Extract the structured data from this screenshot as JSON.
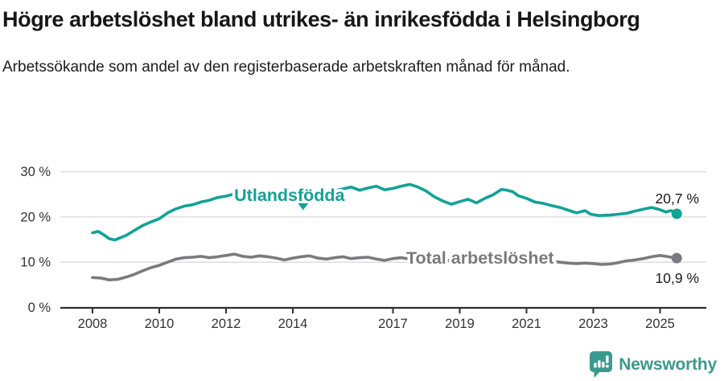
{
  "header": {
    "title": "Högre arbetslöshet bland utrikes- än inrikesfödda i Helsingborg",
    "subtitle": "Arbetssökande som andel av den registerbaserade arbetskraften månad för månad."
  },
  "chart_data": {
    "type": "line",
    "unit": "%",
    "grid": "horizontal-only",
    "xlim": [
      2007.05,
      2026.4
    ],
    "ylim": [
      0,
      32
    ],
    "x_ticks": [
      {
        "x": 2008,
        "label": "2008"
      },
      {
        "x": 2010,
        "label": "2010"
      },
      {
        "x": 2012,
        "label": "2012"
      },
      {
        "x": 2014,
        "label": "2014"
      },
      {
        "x": 2017,
        "label": "2017"
      },
      {
        "x": 2019,
        "label": "2019"
      },
      {
        "x": 2021,
        "label": "2021"
      },
      {
        "x": 2023,
        "label": "2023"
      },
      {
        "x": 2025,
        "label": "2025"
      }
    ],
    "y_ticks": [
      {
        "y": 0,
        "label": "0 %"
      },
      {
        "y": 10,
        "label": "10 %"
      },
      {
        "y": 20,
        "label": "20 %"
      },
      {
        "y": 30,
        "label": "30 %"
      }
    ],
    "series": [
      {
        "name": "Utlandsfödda",
        "color": "#12a296",
        "end_label": "20,7 %",
        "final_value": 20.7,
        "label_anchor": {
          "x": 2013.9,
          "y": 24.8
        },
        "pointer": {
          "x": 2014.31,
          "y": 22.9
        },
        "points": [
          [
            2008.0,
            16.5
          ],
          [
            2008.17,
            16.8
          ],
          [
            2008.33,
            16.1
          ],
          [
            2008.5,
            15.2
          ],
          [
            2008.67,
            14.9
          ],
          [
            2008.83,
            15.4
          ],
          [
            2009.0,
            15.9
          ],
          [
            2009.25,
            17.0
          ],
          [
            2009.5,
            18.1
          ],
          [
            2009.75,
            18.9
          ],
          [
            2010.0,
            19.6
          ],
          [
            2010.25,
            20.9
          ],
          [
            2010.5,
            21.8
          ],
          [
            2010.75,
            22.4
          ],
          [
            2011.0,
            22.7
          ],
          [
            2011.25,
            23.3
          ],
          [
            2011.5,
            23.7
          ],
          [
            2011.75,
            24.3
          ],
          [
            2012.0,
            24.6
          ],
          [
            2012.25,
            25.1
          ],
          [
            2012.5,
            25.5
          ],
          [
            2012.75,
            25.2
          ],
          [
            2013.0,
            25.4
          ],
          [
            2013.25,
            25.7
          ],
          [
            2013.5,
            25.1
          ],
          [
            2013.75,
            24.8
          ],
          [
            2014.0,
            25.0
          ],
          [
            2014.25,
            25.4
          ],
          [
            2014.5,
            24.9
          ],
          [
            2014.75,
            25.1
          ],
          [
            2015.0,
            25.5
          ],
          [
            2015.25,
            25.8
          ],
          [
            2015.5,
            26.2
          ],
          [
            2015.75,
            26.6
          ],
          [
            2016.0,
            25.9
          ],
          [
            2016.25,
            26.4
          ],
          [
            2016.5,
            26.8
          ],
          [
            2016.75,
            26.0
          ],
          [
            2017.0,
            26.3
          ],
          [
            2017.25,
            26.8
          ],
          [
            2017.5,
            27.2
          ],
          [
            2017.75,
            26.6
          ],
          [
            2018.0,
            25.7
          ],
          [
            2018.25,
            24.4
          ],
          [
            2018.5,
            23.5
          ],
          [
            2018.75,
            22.8
          ],
          [
            2019.0,
            23.4
          ],
          [
            2019.25,
            23.9
          ],
          [
            2019.5,
            23.1
          ],
          [
            2019.75,
            24.1
          ],
          [
            2020.0,
            24.9
          ],
          [
            2020.25,
            26.1
          ],
          [
            2020.42,
            25.9
          ],
          [
            2020.58,
            25.6
          ],
          [
            2020.75,
            24.7
          ],
          [
            2021.0,
            24.1
          ],
          [
            2021.25,
            23.3
          ],
          [
            2021.5,
            23.0
          ],
          [
            2021.75,
            22.5
          ],
          [
            2022.0,
            22.1
          ],
          [
            2022.25,
            21.5
          ],
          [
            2022.5,
            20.9
          ],
          [
            2022.75,
            21.4
          ],
          [
            2022.92,
            20.6
          ],
          [
            2023.17,
            20.3
          ],
          [
            2023.5,
            20.4
          ],
          [
            2023.75,
            20.6
          ],
          [
            2024.0,
            20.8
          ],
          [
            2024.25,
            21.3
          ],
          [
            2024.5,
            21.7
          ],
          [
            2024.75,
            22.1
          ],
          [
            2025.0,
            21.6
          ],
          [
            2025.17,
            21.1
          ],
          [
            2025.33,
            21.4
          ],
          [
            2025.5,
            20.7
          ]
        ]
      },
      {
        "name": "Total arbetslöshet",
        "color": "#7a7a7e",
        "end_label": "10,9 %",
        "final_value": 10.9,
        "label_anchor": {
          "x": 2019.61,
          "y": 10.9
        },
        "points": [
          [
            2008.0,
            6.6
          ],
          [
            2008.25,
            6.5
          ],
          [
            2008.5,
            6.1
          ],
          [
            2008.75,
            6.2
          ],
          [
            2009.0,
            6.7
          ],
          [
            2009.25,
            7.3
          ],
          [
            2009.5,
            8.1
          ],
          [
            2009.75,
            8.8
          ],
          [
            2010.0,
            9.3
          ],
          [
            2010.25,
            10.0
          ],
          [
            2010.5,
            10.7
          ],
          [
            2010.75,
            11.0
          ],
          [
            2011.0,
            11.1
          ],
          [
            2011.25,
            11.3
          ],
          [
            2011.5,
            11.0
          ],
          [
            2011.75,
            11.2
          ],
          [
            2012.0,
            11.5
          ],
          [
            2012.25,
            11.8
          ],
          [
            2012.5,
            11.3
          ],
          [
            2012.75,
            11.1
          ],
          [
            2013.0,
            11.4
          ],
          [
            2013.25,
            11.2
          ],
          [
            2013.5,
            10.9
          ],
          [
            2013.75,
            10.5
          ],
          [
            2014.0,
            10.9
          ],
          [
            2014.25,
            11.2
          ],
          [
            2014.5,
            11.4
          ],
          [
            2014.75,
            10.9
          ],
          [
            2015.0,
            10.7
          ],
          [
            2015.25,
            11.0
          ],
          [
            2015.5,
            11.2
          ],
          [
            2015.75,
            10.8
          ],
          [
            2016.0,
            11.0
          ],
          [
            2016.25,
            11.1
          ],
          [
            2016.5,
            10.7
          ],
          [
            2016.75,
            10.4
          ],
          [
            2017.0,
            10.8
          ],
          [
            2017.25,
            11.0
          ],
          [
            2017.5,
            10.7
          ],
          [
            2017.75,
            10.5
          ],
          [
            2018.0,
            10.3
          ],
          [
            2018.25,
            10.4
          ],
          [
            2018.5,
            10.2
          ],
          [
            2018.75,
            10.5
          ],
          [
            2019.0,
            10.6
          ],
          [
            2019.25,
            10.8
          ],
          [
            2019.5,
            10.7
          ],
          [
            2019.75,
            11.0
          ],
          [
            2020.0,
            11.2
          ],
          [
            2020.25,
            12.0
          ],
          [
            2020.5,
            11.8
          ],
          [
            2020.75,
            11.4
          ],
          [
            2021.0,
            11.2
          ],
          [
            2021.25,
            10.9
          ],
          [
            2021.5,
            10.5
          ],
          [
            2021.75,
            10.2
          ],
          [
            2022.0,
            10.0
          ],
          [
            2022.25,
            9.8
          ],
          [
            2022.5,
            9.7
          ],
          [
            2022.75,
            9.8
          ],
          [
            2023.0,
            9.7
          ],
          [
            2023.25,
            9.5
          ],
          [
            2023.5,
            9.6
          ],
          [
            2023.75,
            9.9
          ],
          [
            2024.0,
            10.3
          ],
          [
            2024.25,
            10.5
          ],
          [
            2024.5,
            10.8
          ],
          [
            2024.75,
            11.2
          ],
          [
            2025.0,
            11.5
          ],
          [
            2025.17,
            11.3
          ],
          [
            2025.33,
            11.1
          ],
          [
            2025.5,
            10.9
          ]
        ]
      }
    ],
    "colors": {
      "grid": "#d9d9d9",
      "axis": "#2f2f2f",
      "tick_text": "#333333",
      "value_text": "#1a1a1a",
      "halo": "#ffffff"
    }
  },
  "footer": {
    "brand": "Newsworthy"
  }
}
